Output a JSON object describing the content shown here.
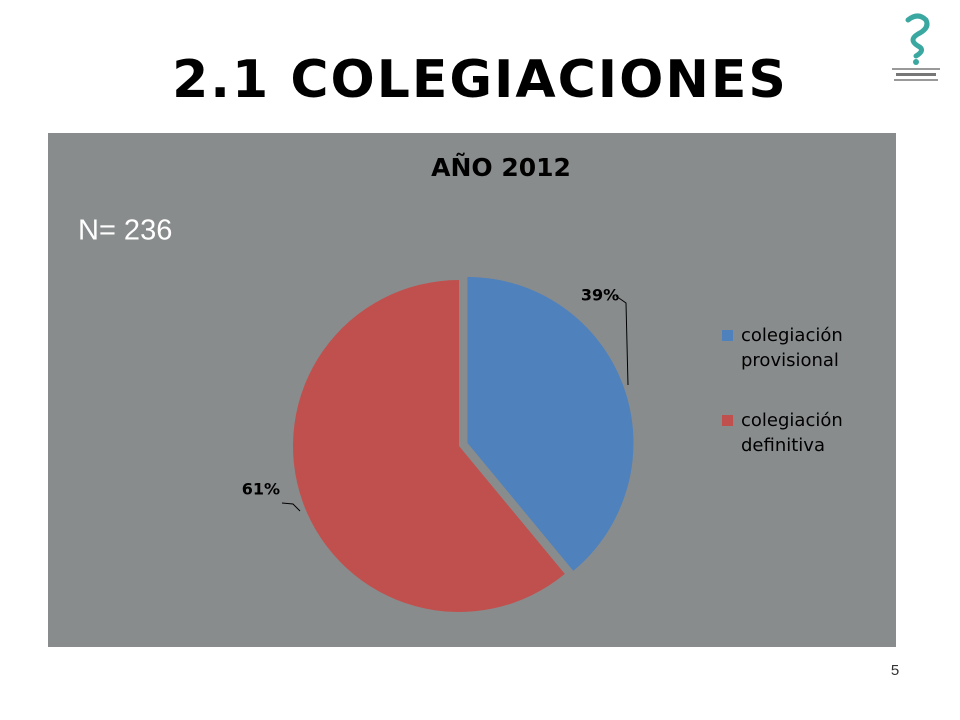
{
  "slide": {
    "title": "2.1 COLEGIACIONES",
    "page_number": 5
  },
  "chart_data": {
    "type": "pie",
    "title": "AÑO 2012",
    "annotation": "N= 236",
    "categories": [
      "colegiación provisional",
      "colegiación definitiva"
    ],
    "values": [
      39,
      61
    ],
    "value_labels": [
      "39%",
      "61%"
    ],
    "colors": [
      "#4f81bd",
      "#c0504d"
    ],
    "exploded": [
      true,
      false
    ],
    "legend": "right"
  }
}
